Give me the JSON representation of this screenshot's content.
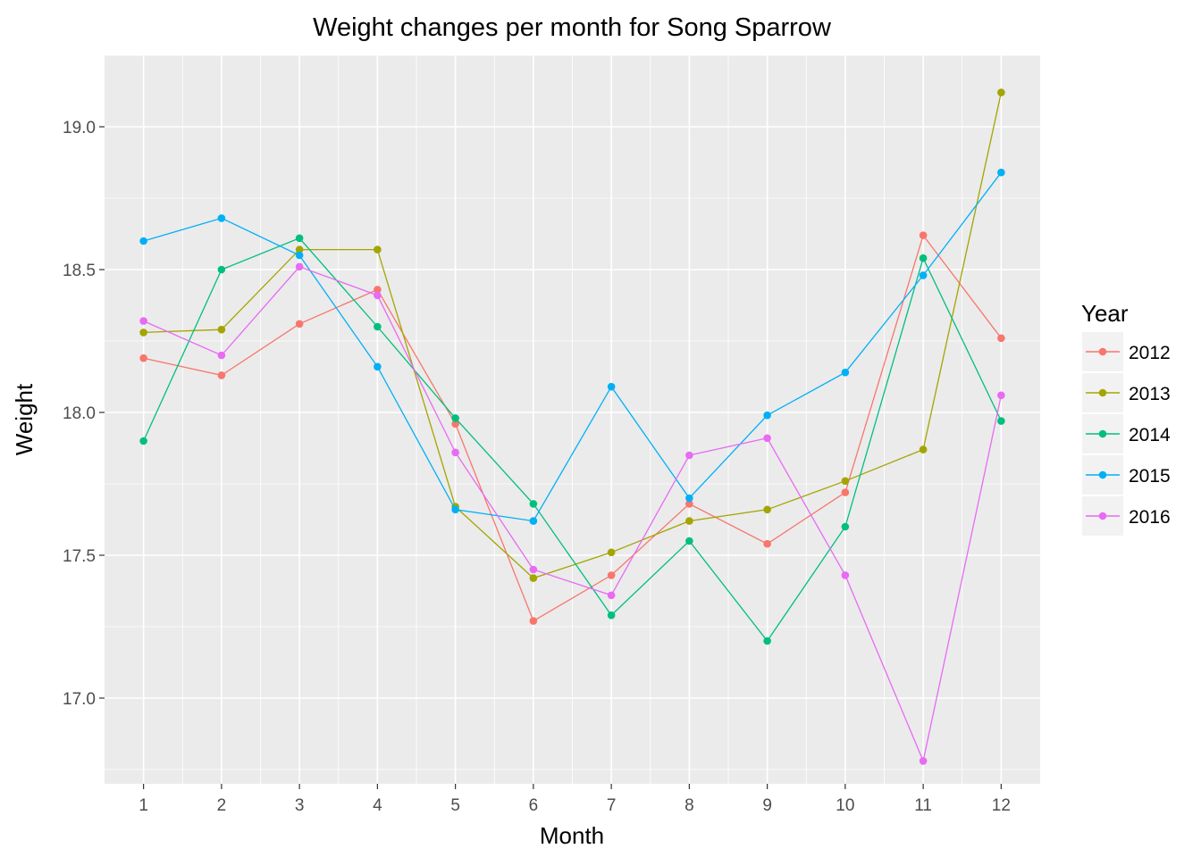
{
  "chart_data": {
    "type": "line",
    "title": "Weight changes per month for Song Sparrow",
    "xlabel": "Month",
    "ylabel": "Weight",
    "legend_title": "Year",
    "legend_position": "right",
    "grid": true,
    "xlim": [
      0.5,
      12.5
    ],
    "ylim": [
      16.7,
      19.25
    ],
    "x_ticks": [
      1,
      2,
      3,
      4,
      5,
      6,
      7,
      8,
      9,
      10,
      11,
      12
    ],
    "x_tick_labels": [
      "1",
      "2",
      "3",
      "4",
      "5",
      "6",
      "7",
      "8",
      "9",
      "10",
      "11",
      "12"
    ],
    "y_ticks": [
      17.0,
      17.5,
      18.0,
      18.5,
      19.0
    ],
    "y_tick_labels": [
      "17.0",
      "17.5",
      "18.0",
      "18.5",
      "19.0"
    ],
    "x": [
      1,
      2,
      3,
      4,
      5,
      6,
      7,
      8,
      9,
      10,
      11,
      12
    ],
    "series": [
      {
        "name": "2012",
        "color": "#F8766D",
        "values": [
          18.19,
          18.13,
          18.31,
          18.43,
          17.96,
          17.27,
          17.43,
          17.68,
          17.54,
          17.72,
          18.62,
          18.26
        ]
      },
      {
        "name": "2013",
        "color": "#A3A500",
        "values": [
          18.28,
          18.29,
          18.57,
          18.57,
          17.67,
          17.42,
          17.51,
          17.62,
          17.66,
          17.76,
          17.87,
          19.12
        ]
      },
      {
        "name": "2014",
        "color": "#00BF7D",
        "values": [
          17.9,
          18.5,
          18.61,
          18.3,
          17.98,
          17.68,
          17.29,
          17.55,
          17.2,
          17.6,
          18.54,
          17.97
        ]
      },
      {
        "name": "2015",
        "color": "#00B0F6",
        "values": [
          18.6,
          18.68,
          18.55,
          18.16,
          17.66,
          17.62,
          18.09,
          17.7,
          17.99,
          18.14,
          18.48,
          18.84
        ]
      },
      {
        "name": "2016",
        "color": "#E76BF3",
        "values": [
          18.32,
          18.2,
          18.51,
          18.41,
          17.86,
          17.45,
          17.36,
          17.85,
          17.91,
          17.43,
          16.78,
          18.06
        ]
      }
    ]
  }
}
